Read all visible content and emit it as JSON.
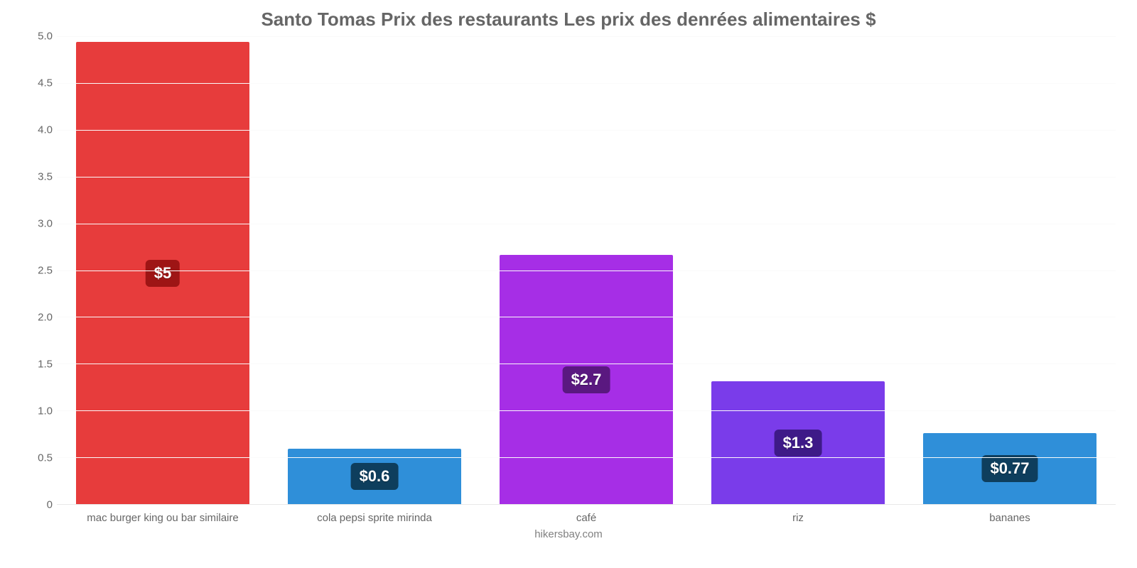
{
  "chart": {
    "type": "bar",
    "title": "Santo Tomas Prix des restaurants Les prix des denrées alimentaires $",
    "title_fontsize": 26,
    "title_color": "#666666",
    "footer": "hikersbay.com",
    "footer_color": "#808080",
    "background_color": "#ffffff",
    "grid_color": "#fafafa",
    "baseline_color": "#e8e8e8",
    "ylim_min": 0,
    "ylim_max": 5.0,
    "y_ticks": [
      "0",
      "0.5",
      "1.0",
      "1.5",
      "2.0",
      "2.5",
      "3.0",
      "3.5",
      "4.0",
      "4.5",
      "5.0"
    ],
    "y_tick_values": [
      0,
      0.5,
      1.0,
      1.5,
      2.0,
      2.5,
      3.0,
      3.5,
      4.0,
      4.5,
      5.0
    ],
    "label_fontsize": 15,
    "label_color": "#666666",
    "bar_width_pct": 82,
    "value_label_fontsize": 22,
    "categories": [
      "mac burger king ou bar similaire",
      "cola pepsi sprite mirinda",
      "café",
      "riz",
      "bananes"
    ],
    "values": [
      4.95,
      0.6,
      2.67,
      1.32,
      0.77
    ],
    "value_labels": [
      "$5",
      "$0.6",
      "$2.7",
      "$1.3",
      "$0.77"
    ],
    "bar_colors": [
      "#e73c3c",
      "#2f8fd9",
      "#a62ee6",
      "#7a3cea",
      "#2f8fd9"
    ],
    "badge_bg_colors": [
      "#9e1515",
      "#0e3e5d",
      "#5a1880",
      "#3e1a88",
      "#0e3e5d"
    ],
    "badge_text_color": "#ffffff"
  }
}
